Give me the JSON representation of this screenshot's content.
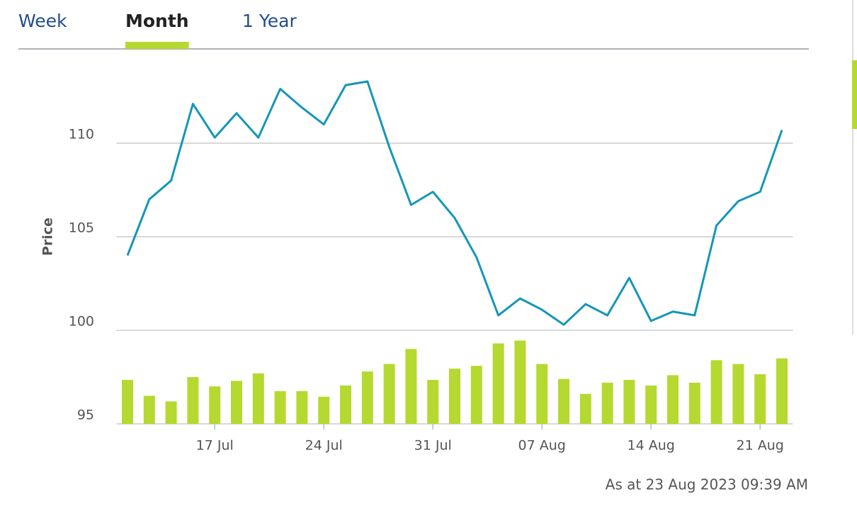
{
  "tabs": [
    "Week",
    "Month",
    "1 Year"
  ],
  "active_tab": 1,
  "chart_data": {
    "type": "line",
    "y_label": "Price",
    "categories": [
      null,
      null,
      null,
      null,
      "17 Jul",
      null,
      null,
      null,
      null,
      "24 Jul",
      null,
      null,
      null,
      null,
      "31 Jul",
      null,
      null,
      null,
      null,
      "07 Aug",
      null,
      null,
      null,
      null,
      "14 Aug",
      null,
      null,
      null,
      null,
      "21 Aug",
      null
    ],
    "series": [
      {
        "type": "line",
        "color": "#1596b8",
        "values": [
          104.0,
          107.0,
          108.0,
          112.1,
          110.3,
          111.6,
          110.3,
          112.9,
          111.9,
          111.0,
          113.1,
          113.3,
          109.8,
          106.7,
          107.4,
          106.0,
          103.9,
          100.8,
          101.7,
          101.1,
          100.3,
          101.4,
          100.8,
          102.8,
          100.5,
          101.0,
          100.8,
          105.6,
          106.9,
          107.4,
          110.7
        ]
      },
      {
        "type": "bar",
        "axis": "y2",
        "color": "#b5d930",
        "values": [
          2.35,
          1.5,
          1.2,
          2.5,
          2.0,
          2.3,
          2.7,
          1.75,
          1.75,
          1.45,
          2.05,
          2.8,
          3.2,
          4.0,
          2.35,
          2.95,
          3.1,
          4.3,
          4.45,
          3.2,
          2.4,
          1.6,
          2.2,
          2.35,
          2.05,
          2.6,
          2.2,
          3.4,
          3.2,
          2.65,
          3.5
        ]
      }
    ],
    "ylim": [
      95,
      115
    ],
    "yticks": [
      95,
      100,
      105,
      110
    ],
    "y2lim": [
      0,
      20
    ],
    "grid": true
  },
  "footer": "As at 23 Aug 2023 09:39 AM"
}
